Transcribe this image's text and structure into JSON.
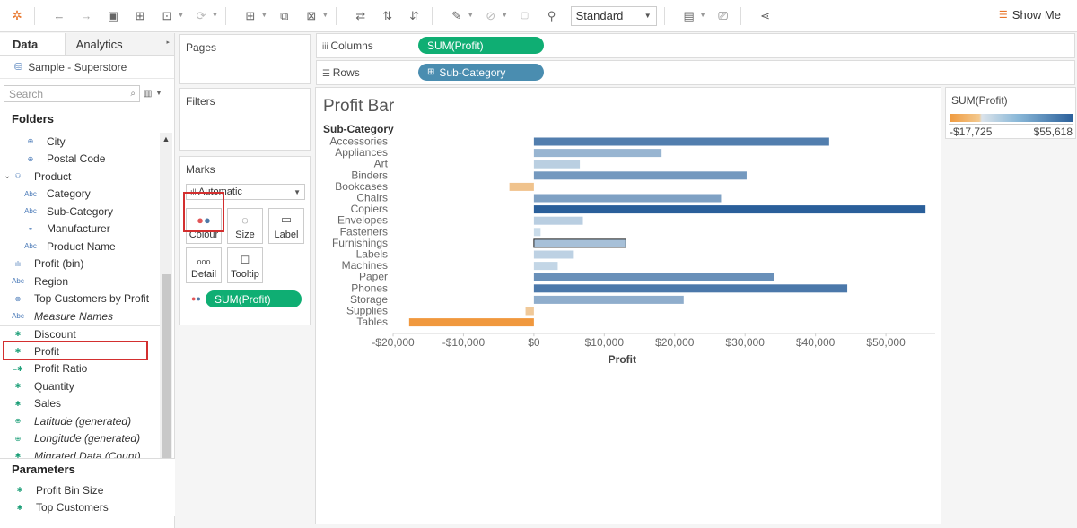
{
  "toolbar": {
    "view_select": "Standard",
    "show_me": "Show Me"
  },
  "data_pane": {
    "tabs": [
      "Data",
      "Analytics"
    ],
    "data_source": "Sample - Superstore",
    "search_placeholder": "Search",
    "folders_heading": "Folders",
    "fields": [
      {
        "label": "City",
        "icon": "globe-icon",
        "indent": 1,
        "kind": "dim"
      },
      {
        "label": "Postal Code",
        "icon": "globe-icon",
        "indent": 1,
        "kind": "dim"
      },
      {
        "label": "Product",
        "icon": "hierarchy-icon",
        "indent": 0,
        "kind": "dim"
      },
      {
        "label": "Category",
        "icon": "abc-icon",
        "indent": 1,
        "kind": "dim"
      },
      {
        "label": "Sub-Category",
        "icon": "abc-icon",
        "indent": 1,
        "kind": "dim"
      },
      {
        "label": "Manufacturer",
        "icon": "link-icon",
        "indent": 1,
        "kind": "dim"
      },
      {
        "label": "Product Name",
        "icon": "abc-icon",
        "indent": 1,
        "kind": "dim"
      },
      {
        "label": "Profit (bin)",
        "icon": "bin-icon",
        "indent": 0,
        "kind": "dim"
      },
      {
        "label": "Region",
        "icon": "abc-icon",
        "indent": 0,
        "kind": "dim"
      },
      {
        "label": "Top Customers by Profit",
        "icon": "set-icon",
        "indent": 0,
        "kind": "dim"
      },
      {
        "label": "Measure Names",
        "icon": "abc-icon",
        "indent": 0,
        "kind": "dim",
        "italic": true
      },
      {
        "label": "Discount",
        "icon": "measure-icon",
        "indent": 0,
        "kind": "meas"
      },
      {
        "label": "Profit",
        "icon": "measure-icon",
        "indent": 0,
        "kind": "meas"
      },
      {
        "label": "Profit Ratio",
        "icon": "calc-icon",
        "indent": 0,
        "kind": "meas"
      },
      {
        "label": "Quantity",
        "icon": "measure-icon",
        "indent": 0,
        "kind": "meas"
      },
      {
        "label": "Sales",
        "icon": "measure-icon",
        "indent": 0,
        "kind": "meas"
      },
      {
        "label": "Latitude (generated)",
        "icon": "globe-icon",
        "indent": 0,
        "kind": "meas",
        "italic": true
      },
      {
        "label": "Longitude (generated)",
        "icon": "globe-icon",
        "indent": 0,
        "kind": "meas",
        "italic": true
      },
      {
        "label": "Migrated Data (Count)",
        "icon": "measure-icon",
        "indent": 0,
        "kind": "meas",
        "italic": true
      }
    ],
    "parameters_heading": "Parameters",
    "parameters": [
      "Profit Bin Size",
      "Top Customers"
    ]
  },
  "cards": {
    "pages": "Pages",
    "filters": "Filters",
    "marks": "Marks",
    "mark_type": "Automatic",
    "buttons": {
      "colour": "Colour",
      "size": "Size",
      "label": "Label",
      "detail": "Detail",
      "tooltip": "Tooltip"
    },
    "colour_pill": "SUM(Profit)"
  },
  "shelves": {
    "columns_label": "Columns",
    "columns_pill": "SUM(Profit)",
    "rows_label": "Rows",
    "rows_pill": "Sub-Category"
  },
  "legend": {
    "title": "SUM(Profit)",
    "min": "-$17,725",
    "max": "$55,618",
    "colors": {
      "negative": "#f09a3e",
      "positive": "#2a5f9a"
    }
  },
  "chart_data": {
    "type": "bar",
    "orientation": "horizontal",
    "title": "Profit Bar",
    "row_header": "Sub-Category",
    "xlabel": "Profit",
    "xlim": [
      -20000,
      57000
    ],
    "xticks": [
      -20000,
      -10000,
      0,
      10000,
      20000,
      30000,
      40000,
      50000
    ],
    "xtick_labels": [
      "-$20,000",
      "-$10,000",
      "$0",
      "$10,000",
      "$20,000",
      "$30,000",
      "$40,000",
      "$50,000"
    ],
    "categories": [
      "Accessories",
      "Appliances",
      "Art",
      "Binders",
      "Bookcases",
      "Chairs",
      "Copiers",
      "Envelopes",
      "Fasteners",
      "Furnishings",
      "Labels",
      "Machines",
      "Paper",
      "Phones",
      "Storage",
      "Supplies",
      "Tables"
    ],
    "values": [
      41937,
      18138,
      6528,
      30222,
      -3473,
      26590,
      55618,
      6964,
      950,
      13059,
      5546,
      3385,
      34054,
      44516,
      21279,
      -1189,
      -17725
    ],
    "selected": "Furnishings",
    "grid": false
  }
}
